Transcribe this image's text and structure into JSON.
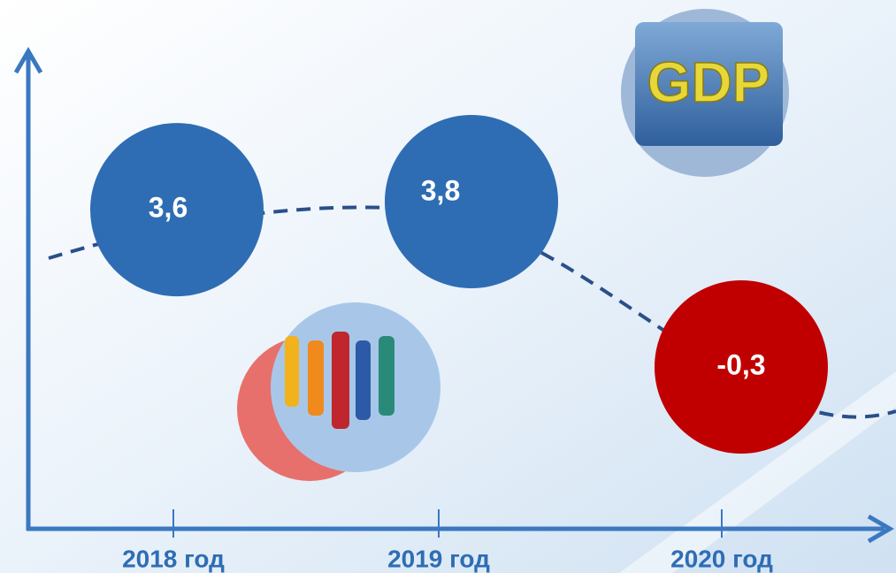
{
  "chart_data": {
    "type": "bubble-line",
    "categories": [
      "2018 год",
      "2019 год",
      "2020 год"
    ],
    "values": [
      3.6,
      3.8,
      -0.3
    ],
    "value_labels": [
      "3,6",
      "3,8",
      "-0,3"
    ],
    "colors": [
      "#2e6db4",
      "#2e6db4",
      "#c00000"
    ],
    "annotations": [
      "GDP"
    ]
  }
}
